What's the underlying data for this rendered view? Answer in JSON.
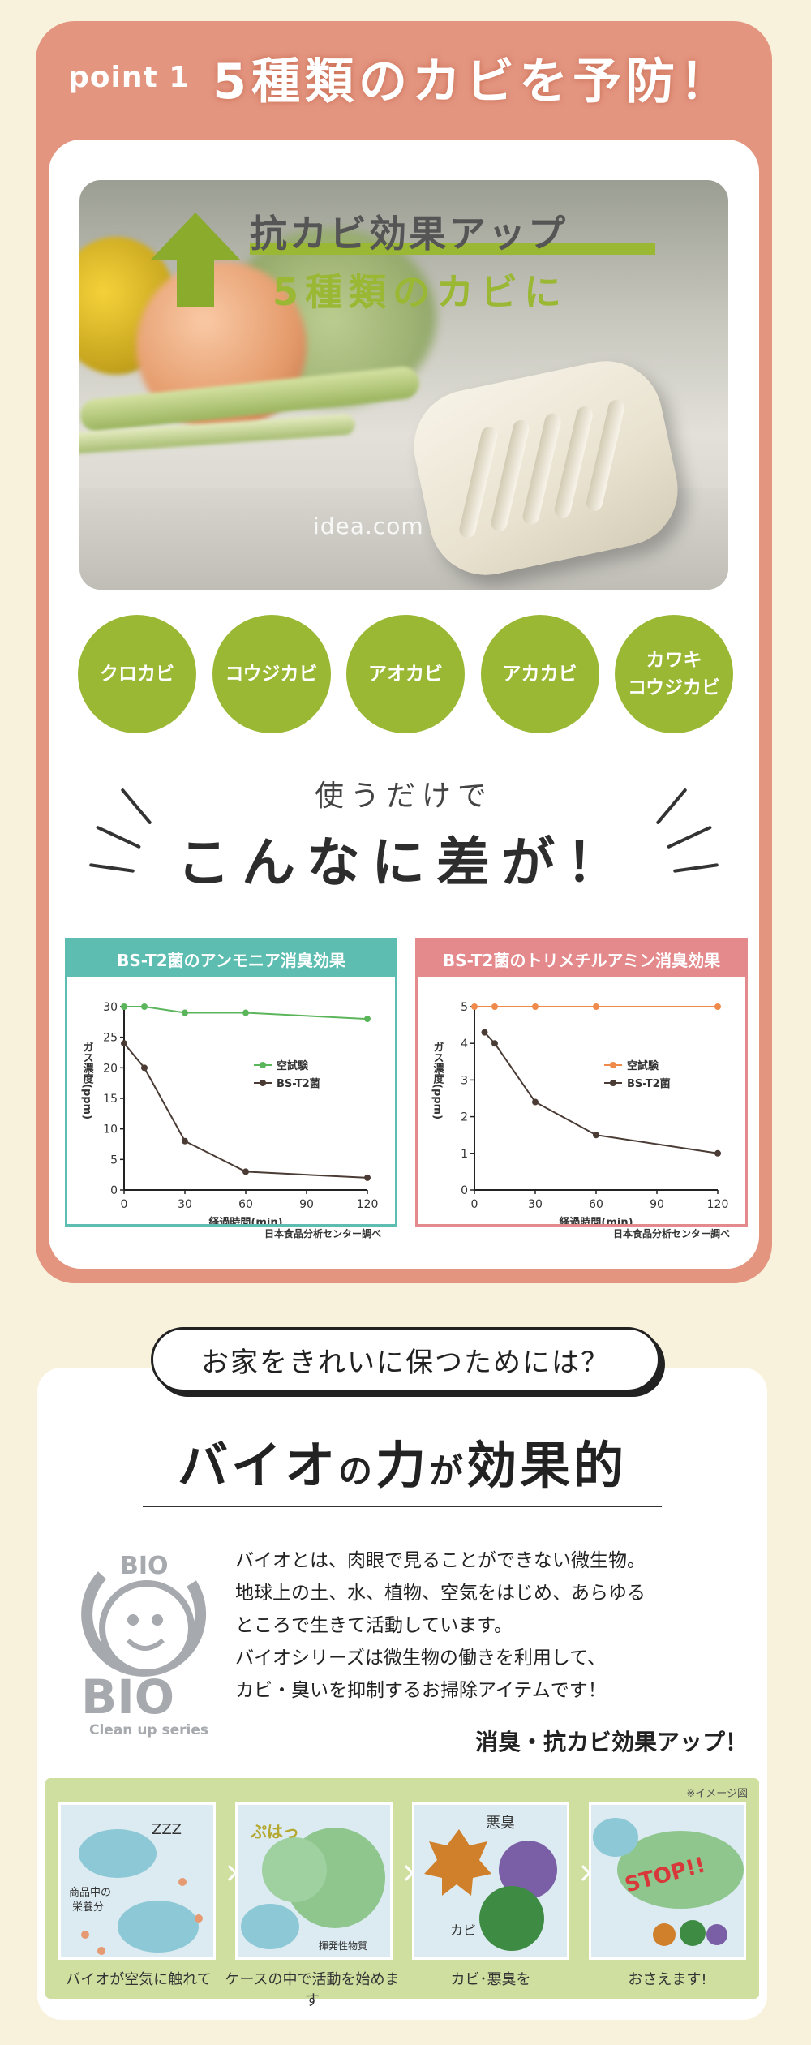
{
  "section1": {
    "point_label": "point 1",
    "title": "5種類のカビを予防！",
    "photo": {
      "headline1": "抗カビ効果アップ",
      "headline2": "5種類のカビに",
      "watermark": "idea.com"
    },
    "mold_types": [
      {
        "line1": "クロカビ",
        "line2": ""
      },
      {
        "line1": "コウジカビ",
        "line2": ""
      },
      {
        "line1": "アオカビ",
        "line2": ""
      },
      {
        "line1": "アカカビ",
        "line2": ""
      },
      {
        "line1": "カワキ",
        "line2": "コウジカビ"
      }
    ],
    "sub_heading_small": "使うだけで",
    "sub_heading_big": "こんなに差が！",
    "source_left": "日本食品分析センター調べ",
    "source_right": "日本食品分析センター調べ"
  },
  "chart_data": [
    {
      "type": "line",
      "title": "BS-T2菌のアンモニア消臭効果",
      "xlabel": "経過時間(min)",
      "ylabel": "ガス濃度(ppm)",
      "x_ticks": [
        0,
        30,
        60,
        90,
        120
      ],
      "y_ticks": [
        0,
        5,
        10,
        15,
        20,
        25,
        30
      ],
      "xlim": [
        0,
        120
      ],
      "ylim": [
        0,
        30
      ],
      "legend_position": "right",
      "series": [
        {
          "name": "空試験",
          "color": "#5bb55a",
          "x": [
            0,
            10,
            30,
            60,
            120
          ],
          "y": [
            30,
            30,
            29,
            29,
            28
          ]
        },
        {
          "name": "BS-T2菌",
          "color": "#4a3b34",
          "x": [
            0,
            10,
            30,
            60,
            120
          ],
          "y": [
            24,
            20,
            8,
            3,
            2
          ]
        }
      ]
    },
    {
      "type": "line",
      "title": "BS-T2菌のトリメチルアミン消臭効果",
      "xlabel": "経過時間(min)",
      "ylabel": "ガス濃度(ppm)",
      "x_ticks": [
        0,
        30,
        60,
        90,
        120
      ],
      "y_ticks": [
        0,
        1,
        2,
        3,
        4,
        5
      ],
      "xlim": [
        0,
        120
      ],
      "ylim": [
        0,
        5
      ],
      "legend_position": "right",
      "series": [
        {
          "name": "空試験",
          "color": "#ef8a4a",
          "x": [
            0,
            10,
            30,
            60,
            120
          ],
          "y": [
            5,
            5,
            5,
            5,
            5
          ]
        },
        {
          "name": "BS-T2菌",
          "color": "#4a3b34",
          "x": [
            5,
            10,
            30,
            60,
            120
          ],
          "y": [
            4.3,
            4,
            2.4,
            1.5,
            1
          ]
        }
      ]
    }
  ],
  "section2": {
    "pill": "お家をきれいに保つためには？",
    "title_a": "バイオ",
    "title_b": "の",
    "title_c": "力",
    "title_d": "が",
    "title_e": "効果的",
    "logo_top": "BIO",
    "logo_big": "BIO",
    "logo_sub": "Clean up series",
    "description": [
      "バイオとは、肉眼で見ることができない微生物。",
      "地球上の土、水、植物、空気をはじめ、あらゆる",
      "ところで生きて活動しています。",
      "バイオシリーズは微生物の働きを利用して、",
      "カビ・臭いを抑制するお掃除アイテムです！"
    ],
    "emphasis": "消臭・抗カビ効果アップ！",
    "image_note": "※イメージ図",
    "steps": [
      {
        "caption": "バイオが空気に触れて",
        "label1": "ZZZ",
        "label2": "商品中の",
        "label3": "栄養分"
      },
      {
        "caption": "ケースの中で活動を始めます",
        "label1": "ぷはっ",
        "label2": "揮発性物質"
      },
      {
        "caption": "カビ･悪臭を",
        "label1": "悪臭",
        "label2": "カビ"
      },
      {
        "caption": "おさえます!",
        "label1": "STOP!!"
      }
    ]
  }
}
